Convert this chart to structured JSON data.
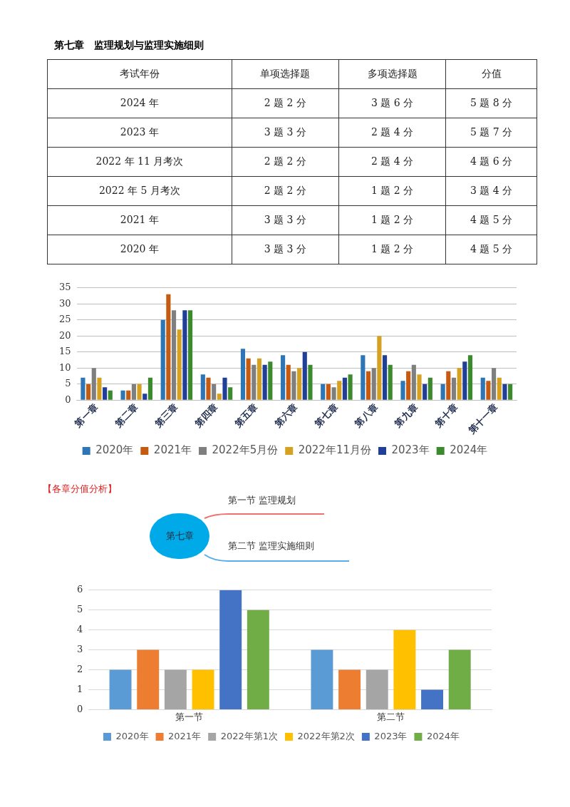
{
  "chart_data": [
    {
      "type": "other",
      "title": "第七章　监理规划与监理实施细则",
      "categories": [
        "考试年份",
        "单项选择题",
        "多项选择题",
        "分值"
      ],
      "y_categories": [
        "2024 年",
        "2023 年",
        "2022 年 11 月考次",
        "2022 年 5 月考次",
        "2021 年",
        "2020 年"
      ],
      "cell_labels": [
        [
          "2 题 2 分",
          "3 题 6 分",
          "5 题 8 分"
        ],
        [
          "3 题 3 分",
          "2 题 4 分",
          "5 题 7 分"
        ],
        [
          "2 题 2 分",
          "2 题 4 分",
          "4 题 6 分"
        ],
        [
          "2 题 2 分",
          "1 题 2 分",
          "3 题 4 分"
        ],
        [
          "3 题 3 分",
          "1 题 2 分",
          "4 题 5 分"
        ],
        [
          "3 题 3 分",
          "1 题 2 分",
          "4 题 5 分"
        ]
      ]
    },
    {
      "type": "bar",
      "categories": [
        "第一章",
        "第二章",
        "第三章",
        "第四章",
        "第五章",
        "第六章",
        "第七章",
        "第八章",
        "第九章",
        "第十章",
        "第十一章"
      ],
      "series": [
        {
          "name": "2020年",
          "color": "#2e75b6",
          "values": [
            7,
            3,
            25,
            8,
            16,
            14,
            5,
            14,
            6,
            5,
            7
          ]
        },
        {
          "name": "2021年",
          "color": "#c55a11",
          "values": [
            5,
            3,
            33,
            7,
            13,
            11,
            5,
            9,
            9,
            9,
            6
          ]
        },
        {
          "name": "2022年5月份",
          "color": "#7f7f7f",
          "values": [
            10,
            5,
            28,
            5,
            11,
            9,
            4,
            10,
            11,
            7,
            10
          ]
        },
        {
          "name": "2022年11月份",
          "color": "#d6a020",
          "values": [
            7,
            5,
            22,
            2,
            13,
            10,
            6,
            20,
            8,
            10,
            7
          ]
        },
        {
          "name": "2023年",
          "color": "#1f3f99",
          "values": [
            4,
            2,
            28,
            7,
            11,
            15,
            7,
            14,
            5,
            12,
            5
          ]
        },
        {
          "name": "2024年",
          "color": "#3c8a2e",
          "values": [
            3,
            7,
            28,
            4,
            12,
            11,
            8,
            11,
            7,
            14,
            5
          ]
        }
      ],
      "ylim": [
        0,
        35
      ],
      "yticks": [
        0,
        5,
        10,
        15,
        20,
        25,
        30,
        35
      ],
      "grid": "y",
      "legend": "bottom"
    },
    {
      "type": "other",
      "title": "第七章",
      "categories": [
        "第一节  监理规划",
        "第二节  监理实施细则"
      ],
      "colors": [
        "#f07070",
        "#5aaee8"
      ],
      "annotations": [
        "【各章分值分析】"
      ]
    },
    {
      "type": "bar",
      "categories": [
        "第一节",
        "第二节"
      ],
      "series": [
        {
          "name": "2020年",
          "color": "#5b9bd5",
          "values": [
            2,
            3
          ]
        },
        {
          "name": "2021年",
          "color": "#ed7d31",
          "values": [
            3,
            2
          ]
        },
        {
          "name": "2022年第1次",
          "color": "#a5a5a5",
          "values": [
            2,
            2
          ]
        },
        {
          "name": "2022年第2次",
          "color": "#ffc000",
          "values": [
            2,
            4
          ]
        },
        {
          "name": "2023年",
          "color": "#4472c4",
          "values": [
            6,
            1
          ]
        },
        {
          "name": "2024年",
          "color": "#70ad47",
          "values": [
            5,
            3
          ]
        }
      ],
      "ylim": [
        0,
        6
      ],
      "yticks": [
        0,
        1,
        2,
        3,
        4,
        5,
        6
      ],
      "grid": "y",
      "legend": "bottom"
    }
  ]
}
